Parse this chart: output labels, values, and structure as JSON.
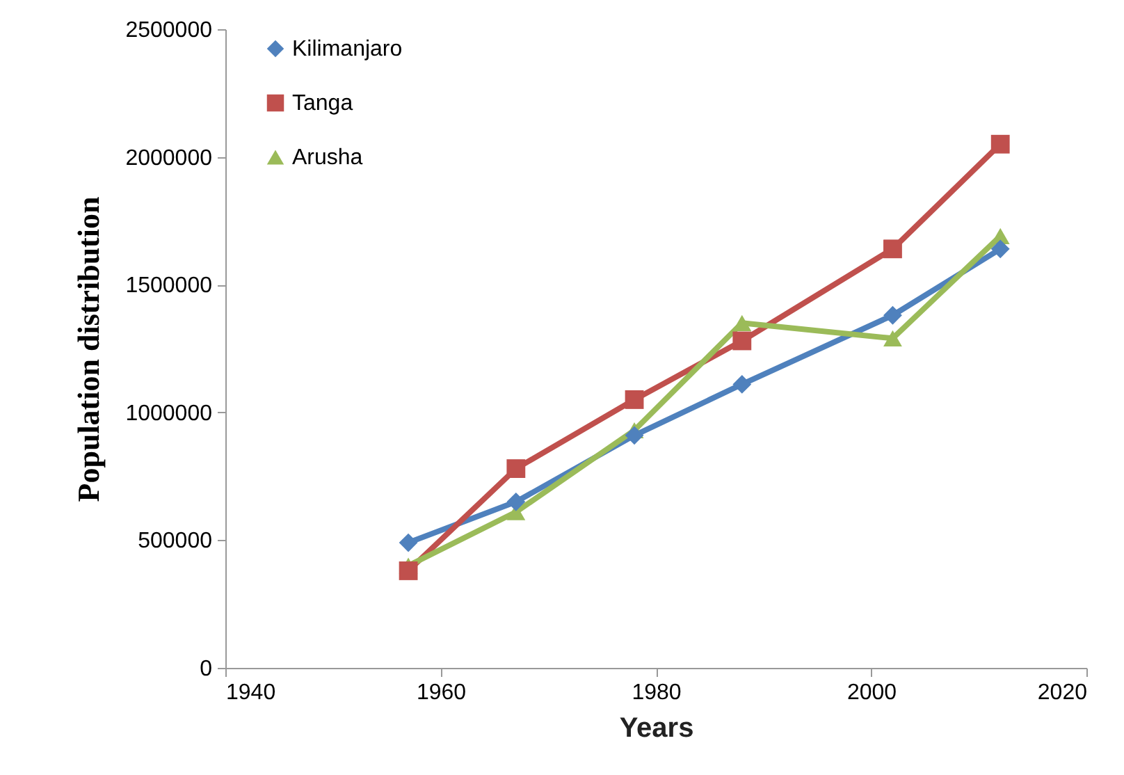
{
  "chart_data": {
    "type": "line",
    "xlabel": "Years",
    "ylabel": "Population distribution",
    "x": [
      1957,
      1967,
      1978,
      1988,
      2002,
      2012
    ],
    "series": [
      {
        "name": "Kilimanjaro",
        "color": "#4f81bd",
        "marker": "diamond",
        "values": [
          490000,
          650000,
          910000,
          1110000,
          1380000,
          1640000
        ]
      },
      {
        "name": "Tanga",
        "color": "#c0504d",
        "marker": "square",
        "values": [
          380000,
          780000,
          1050000,
          1280000,
          1640000,
          2050000
        ]
      },
      {
        "name": "Arusha",
        "color": "#9bbb59",
        "marker": "triangle",
        "values": [
          400000,
          610000,
          930000,
          1350000,
          1290000,
          1690000
        ]
      }
    ],
    "xlim": [
      1940,
      2020
    ],
    "xticks": [
      1940,
      1960,
      1980,
      2000,
      2020
    ],
    "ylim": [
      0,
      2500000
    ],
    "yticks": [
      0,
      500000,
      1000000,
      1500000,
      2000000,
      2500000
    ],
    "grid": false,
    "legend": "top left",
    "line_style": "solid"
  }
}
